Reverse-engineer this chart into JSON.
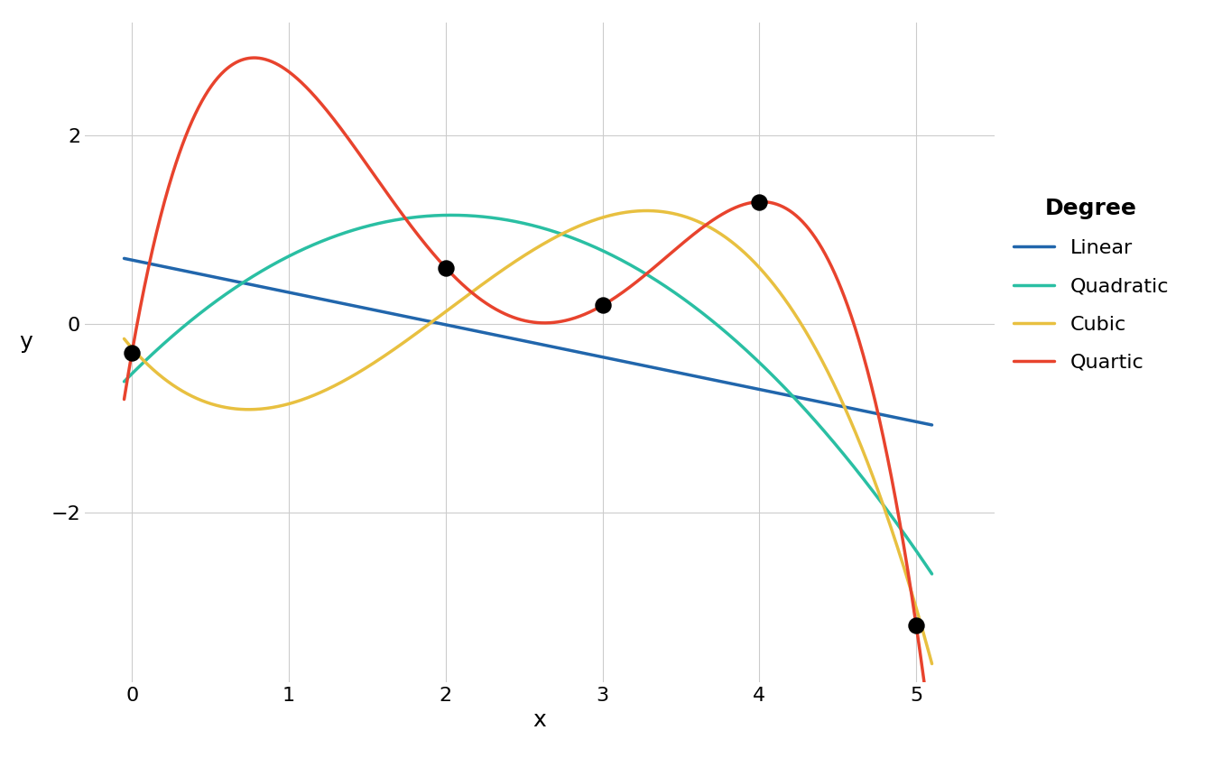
{
  "points_x": [
    0,
    2,
    3,
    4,
    5
  ],
  "points_y": [
    -0.3,
    0.6,
    0.2,
    1.3,
    -3.2
  ],
  "colors": {
    "linear": "#2166ac",
    "quadratic": "#2abfa3",
    "cubic": "#e8c040",
    "quartic": "#e8432d"
  },
  "legend_labels": [
    "Linear",
    "Quadratic",
    "Cubic",
    "Quartic"
  ],
  "legend_title": "Degree",
  "xlabel": "x",
  "ylabel": "y",
  "xlim": [
    -0.3,
    5.5
  ],
  "ylim": [
    -3.8,
    3.2
  ],
  "bg_color": "#ffffff",
  "grid_color": "#cccccc",
  "line_width": 2.5,
  "point_size": 150,
  "point_color": "#000000",
  "axis_label_fontsize": 18,
  "tick_fontsize": 16,
  "legend_fontsize": 16,
  "legend_title_fontsize": 18
}
